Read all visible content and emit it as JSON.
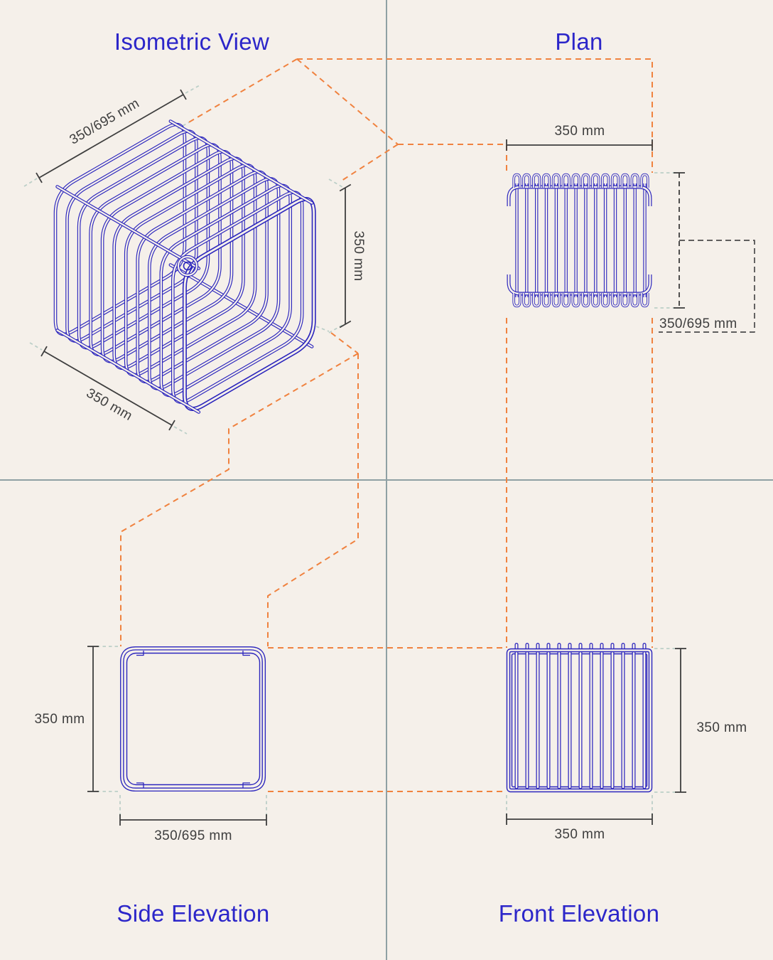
{
  "sheet": {
    "kind": "furniture technical drawing",
    "subject": "wire cube"
  },
  "palette": {
    "background": "#F5F0EA",
    "wire_blue": "#2B25BD",
    "title_blue": "#2C26C9",
    "dim_gray": "#3E3E3E",
    "projection_orange": "#F0823F",
    "extension_teal": "#BCCFC8",
    "divider_gray": "#8FA0A4",
    "callout_gray": "#4A4A4A"
  },
  "views": {
    "isometric": {
      "title": "Isometric View",
      "dims": {
        "depth": "350/695 mm",
        "height": "350 mm",
        "width": "350 mm"
      }
    },
    "plan": {
      "title": "Plan",
      "dims": {
        "width": "350 mm",
        "depth": "350/695 mm"
      }
    },
    "side_elevation": {
      "title": "Side Elevation",
      "dims": {
        "height": "350 mm",
        "width": "350/695 mm"
      }
    },
    "front_elevation": {
      "title": "Front Elevation",
      "dims": {
        "height": "350 mm",
        "width": "350 mm"
      }
    }
  },
  "structure": {
    "iso_loop_count": 12,
    "plan_wire_columns": 14,
    "front_wire_columns": 13
  }
}
